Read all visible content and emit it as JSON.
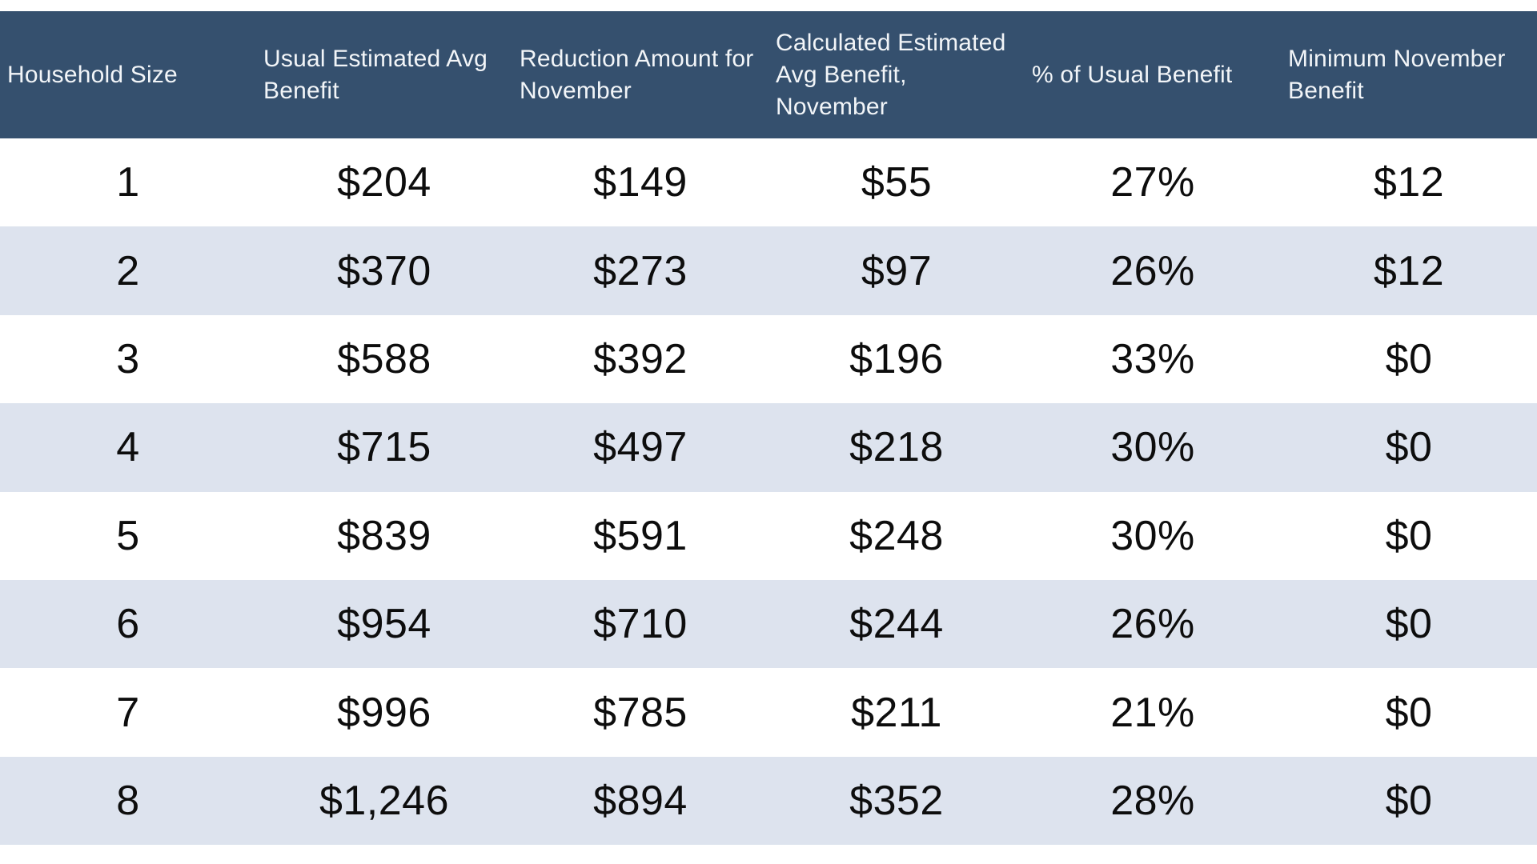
{
  "chart_data": {
    "type": "table",
    "columns": [
      "Household Size",
      "Usual Estimated Avg Benefit",
      "Reduction Amount for November",
      "Calculated Estimated Avg Benefit, November",
      "% of Usual Benefit",
      "Minimum November Benefit"
    ],
    "header_labels_wrapped": [
      "Household Size",
      "Usual Estimated Avg\nBenefit",
      "Reduction Amount for\nNovember",
      "Calculated Estimated\nAvg Benefit,\nNovember",
      "% of Usual Benefit",
      "Minimum November\nBenefit"
    ],
    "rows": [
      [
        "1",
        "$204",
        "$149",
        "$55",
        "27%",
        "$12"
      ],
      [
        "2",
        "$370",
        "$273",
        "$97",
        "26%",
        "$12"
      ],
      [
        "3",
        "$588",
        "$392",
        "$196",
        "33%",
        "$0"
      ],
      [
        "4",
        "$715",
        "$497",
        "$218",
        "30%",
        "$0"
      ],
      [
        "5",
        "$839",
        "$591",
        "$248",
        "30%",
        "$0"
      ],
      [
        "6",
        "$954",
        "$710",
        "$244",
        "26%",
        "$0"
      ],
      [
        "7",
        "$996",
        "$785",
        "$211",
        "21%",
        "$0"
      ],
      [
        "8",
        "$1,246",
        "$894",
        "$352",
        "28%",
        "$0"
      ]
    ],
    "layout": {
      "striped": true,
      "stripe_rows": "even",
      "header_align": "left",
      "cell_align": "center"
    }
  },
  "colors": {
    "header_bg": "#35506E",
    "header_text": "#F2F5F8",
    "row_bg": "#FFFFFF",
    "row_alt_bg": "#DDE3EE",
    "cell_text": "#0D0D0D"
  }
}
